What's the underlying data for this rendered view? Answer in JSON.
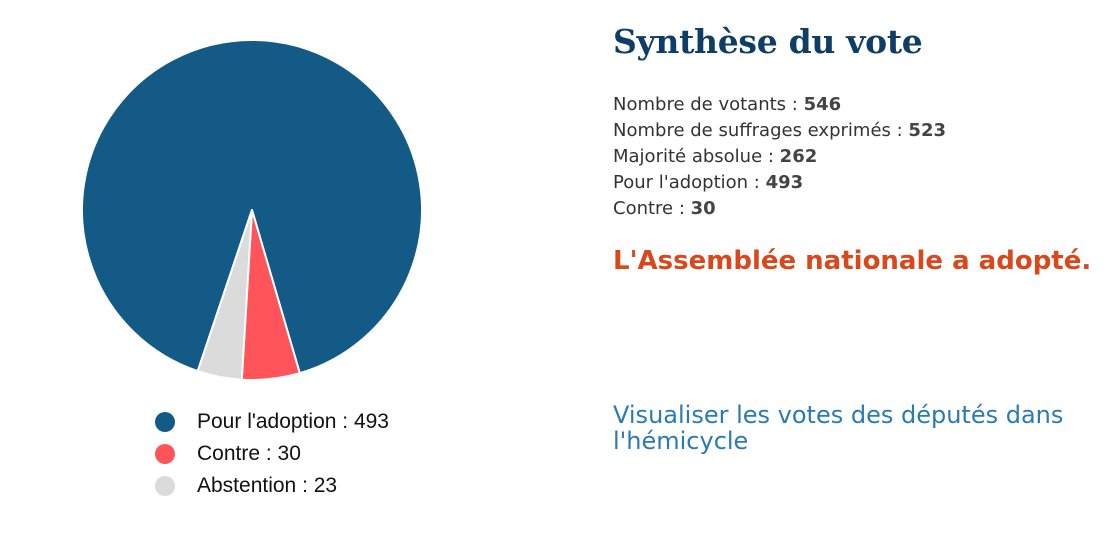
{
  "colors": {
    "pour": "#145a87",
    "contre": "#ff5459",
    "abstention": "#dbdbdb",
    "title": "#0e3d66",
    "result": "#d9471a",
    "link": "#2a7ab3"
  },
  "chart_data": {
    "type": "pie",
    "categories": [
      "Pour l'adoption",
      "Contre",
      "Abstention"
    ],
    "values": [
      493,
      30,
      23
    ],
    "colors": [
      "#145a87",
      "#ff5459",
      "#dbdbdb"
    ],
    "title": "",
    "legend_position": "bottom",
    "legend": [
      {
        "label": "Pour l'adoption : 493"
      },
      {
        "label": "Contre : 30"
      },
      {
        "label": "Abstention : 23"
      }
    ]
  },
  "summary": {
    "title": "Synthèse du vote",
    "stats": [
      {
        "label": "Nombre de votants : ",
        "value": "546"
      },
      {
        "label": "Nombre de suffrages exprimés : ",
        "value": "523"
      },
      {
        "label": "Majorité absolue : ",
        "value": "262"
      },
      {
        "label": "Pour l'adoption : ",
        "value": "493"
      },
      {
        "label": "Contre : ",
        "value": "30"
      }
    ],
    "result": "L'Assemblée nationale a adopté."
  },
  "link": {
    "label": "Visualiser les votes des députés dans l'hémicycle"
  }
}
